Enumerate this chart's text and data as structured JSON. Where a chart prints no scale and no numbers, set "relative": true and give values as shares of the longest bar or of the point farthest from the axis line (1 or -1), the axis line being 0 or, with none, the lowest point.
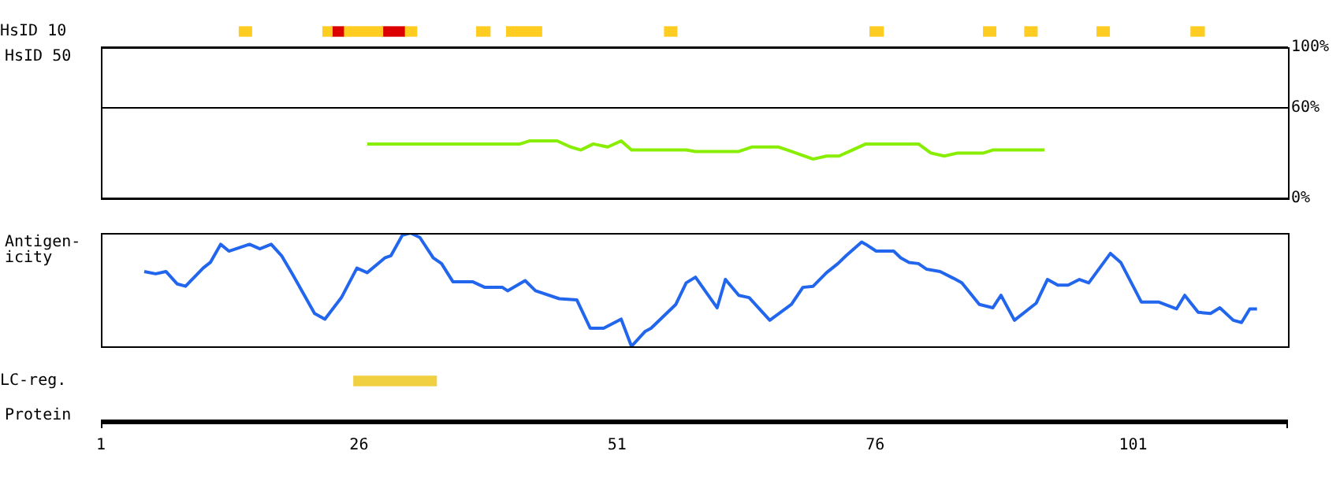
{
  "chart_data": [
    {
      "type": "bar",
      "orientation": "horizontal",
      "categories": [
        "HsID 10",
        "LC-reg."
      ],
      "xlim": [
        1,
        116
      ],
      "xticks": [
        1,
        26,
        51,
        76,
        101
      ],
      "xlabel": "Protein",
      "series": [
        {
          "color": "#ffcc22",
          "values": [
            1.2,
            null
          ],
          "base": [
            14.4,
            null
          ]
        },
        {
          "color": "#ffcc22",
          "values": [
            0.9,
            null
          ],
          "base": [
            22.5,
            null
          ]
        },
        {
          "color": "#dd0000",
          "values": [
            1.1,
            null
          ],
          "base": [
            23.4,
            null
          ]
        },
        {
          "color": "#ffcc22",
          "values": [
            3.8,
            null
          ],
          "base": [
            24.5,
            null
          ]
        },
        {
          "color": "#dd0000",
          "values": [
            2.1,
            null
          ],
          "base": [
            28.3,
            null
          ]
        },
        {
          "color": "#ffcc22",
          "values": [
            1.2,
            null
          ],
          "base": [
            30.4,
            null
          ]
        },
        {
          "color": "#ffcc22",
          "values": [
            1.3,
            null
          ],
          "base": [
            37.4,
            null
          ]
        },
        {
          "color": "#ffcc22",
          "values": [
            3.4,
            null
          ],
          "base": [
            40.3,
            null
          ]
        },
        {
          "color": "#ffcc22",
          "values": [
            1.2,
            null
          ],
          "base": [
            55.6,
            null
          ]
        },
        {
          "color": "#ffcc22",
          "values": [
            1.3,
            null
          ],
          "base": [
            75.5,
            null
          ]
        },
        {
          "color": "#ffcc22",
          "values": [
            1.2,
            null
          ],
          "base": [
            86.5,
            null
          ]
        },
        {
          "color": "#ffcc22",
          "values": [
            1.2,
            null
          ],
          "base": [
            90.5,
            null
          ]
        },
        {
          "color": "#ffcc22",
          "values": [
            1.2,
            null
          ],
          "base": [
            97.5,
            null
          ]
        },
        {
          "color": "#ffcc22",
          "values": [
            1.3,
            null
          ],
          "base": [
            106.6,
            null
          ]
        },
        {
          "color": "#f0d040",
          "values": [
            null,
            8
          ],
          "base": [
            null,
            25.5
          ]
        }
      ]
    },
    {
      "type": "line",
      "ylabel": "HsID 50",
      "xlim": [
        1,
        116
      ],
      "ylim": [
        0,
        100
      ],
      "yticks": [
        {
          "value": 0,
          "label": "0%"
        },
        {
          "value": 60,
          "label": "60%"
        },
        {
          "value": 100,
          "label": "100%"
        }
      ],
      "grid": "y",
      "tick_labels": "y",
      "x": [
        26.8,
        41.6,
        42.5,
        45.2,
        46.5,
        47.5,
        48.7,
        50.1,
        51.4,
        52.4,
        57.7,
        58.6,
        62.8,
        64.1,
        66.6,
        67.9,
        70,
        71.3,
        72.5,
        73.8,
        75.1,
        80.2,
        81.4,
        82.7,
        84,
        86.5,
        87.4,
        92.4
      ],
      "series": [
        {
          "color": "#88ee00",
          "values": [
            36,
            36,
            38,
            38,
            34,
            32,
            36,
            34,
            38,
            32,
            32,
            31,
            31,
            34,
            34,
            31,
            26,
            28,
            28,
            32,
            36,
            36,
            30,
            28,
            30,
            30,
            32,
            32
          ]
        }
      ]
    },
    {
      "type": "line",
      "ylabel": "Antigen-icity",
      "relative": true,
      "xlim": [
        1,
        116
      ],
      "x": [
        5.2,
        6.3,
        7.3,
        8.4,
        9.2,
        10.9,
        11.6,
        12.6,
        13.4,
        15.4,
        16.4,
        17.5,
        18.5,
        19.6,
        21.7,
        22.7,
        24.3,
        25.8,
        26.8,
        28.5,
        29.1,
        30.2,
        31.0,
        31.9,
        33.2,
        34.0,
        35.1,
        37.0,
        38.2,
        39.9,
        40.4,
        42.1,
        43.1,
        45.4,
        47.1,
        48.4,
        49.7,
        51.4,
        52.4,
        53.7,
        54.3,
        56.7,
        57.7,
        58.6,
        60.7,
        61.5,
        62.8,
        63.8,
        65.8,
        67.9,
        69.0,
        70.0,
        71.3,
        72.4,
        73.2,
        74.7,
        75.1,
        76.1,
        77.8,
        78.5,
        79.3,
        80.2,
        81.0,
        82.3,
        83.6,
        84.4,
        86.1,
        87.4,
        88.2,
        89.5,
        91.6,
        92.7,
        93.7,
        94.7,
        95.8,
        96.7,
        98.8,
        99.8,
        101.8,
        103.5,
        105.2,
        106.0,
        107.3,
        108.5,
        109.4,
        110.7,
        111.5,
        112.3,
        113.0
      ],
      "series": [
        {
          "color": "#2266ee",
          "values": [
            0.66,
            0.64,
            0.66,
            0.55,
            0.53,
            0.69,
            0.74,
            0.9,
            0.84,
            0.9,
            0.86,
            0.9,
            0.8,
            0.63,
            0.29,
            0.24,
            0.43,
            0.69,
            0.65,
            0.78,
            0.8,
            0.98,
            1.0,
            0.96,
            0.78,
            0.73,
            0.57,
            0.57,
            0.52,
            0.52,
            0.49,
            0.58,
            0.49,
            0.42,
            0.41,
            0.16,
            0.16,
            0.24,
            0,
            0.13,
            0.16,
            0.37,
            0.56,
            0.61,
            0.34,
            0.59,
            0.45,
            0.43,
            0.23,
            0.37,
            0.52,
            0.53,
            0.65,
            0.73,
            0.8,
            0.92,
            0.9,
            0.84,
            0.84,
            0.78,
            0.74,
            0.73,
            0.68,
            0.66,
            0.6,
            0.56,
            0.37,
            0.34,
            0.45,
            0.23,
            0.38,
            0.59,
            0.54,
            0.54,
            0.59,
            0.56,
            0.82,
            0.74,
            0.39,
            0.39,
            0.33,
            0.45,
            0.3,
            0.29,
            0.34,
            0.23,
            0.21,
            0.33,
            0.33
          ]
        }
      ]
    }
  ]
}
